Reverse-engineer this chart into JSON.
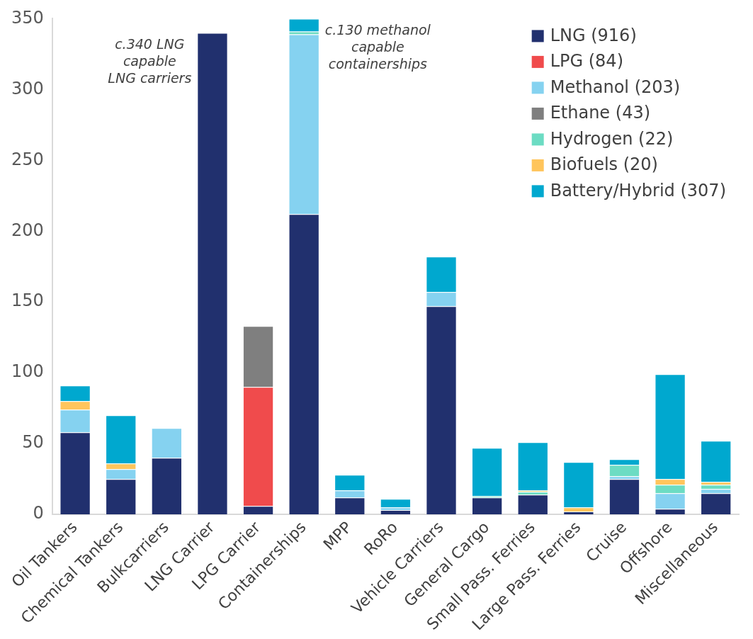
{
  "chart_data": {
    "type": "bar",
    "stacked": true,
    "categories": [
      "Oil Tankers",
      "Chemical Tankers",
      "Bulkcarriers",
      "LNG Carrier",
      "LPG Carrier",
      "Containerships",
      "MPP",
      "RoRo",
      "Vehicle Carriers",
      "General Cargo",
      "Small Pass. Ferries",
      "Large Pass. Ferries",
      "Cruise",
      "Offshore",
      "Miscellaneous"
    ],
    "series": [
      {
        "name": "LNG (916)",
        "color": "#21306e",
        "values": [
          58,
          25,
          40,
          340,
          6,
          212,
          12,
          3,
          147,
          12,
          14,
          2,
          25,
          4,
          15
        ]
      },
      {
        "name": "LPG (84)",
        "color": "#f04b4c",
        "values": [
          null,
          null,
          null,
          null,
          84,
          null,
          null,
          null,
          null,
          null,
          null,
          null,
          null,
          null,
          null
        ]
      },
      {
        "name": "Methanol (203)",
        "color": "#85d2f0",
        "values": [
          16,
          7,
          21,
          null,
          null,
          127,
          5,
          2,
          10,
          null,
          null,
          null,
          2,
          11,
          3
        ]
      },
      {
        "name": "Ethane (43)",
        "color": "#7f7f7f",
        "values": [
          null,
          null,
          null,
          null,
          43,
          null,
          null,
          null,
          null,
          null,
          null,
          null,
          null,
          null,
          null
        ]
      },
      {
        "name": "Hydrogen (22)",
        "color": "#6cdcc3",
        "values": [
          null,
          null,
          null,
          null,
          null,
          2,
          null,
          null,
          null,
          1,
          2,
          null,
          8,
          6,
          3
        ]
      },
      {
        "name": "Biofuels (20)",
        "color": "#ffc55c",
        "values": [
          6,
          4,
          null,
          null,
          null,
          null,
          null,
          null,
          null,
          null,
          1,
          3,
          null,
          4,
          2
        ]
      },
      {
        "name": "Battery/Hybrid (307)",
        "color": "#00a8cf",
        "values": [
          11,
          34,
          null,
          null,
          null,
          9,
          11,
          6,
          25,
          34,
          34,
          32,
          4,
          74,
          29
        ]
      }
    ],
    "ylim": [
      0,
      350
    ],
    "yticks": [
      0,
      50,
      100,
      150,
      200,
      250,
      300,
      350
    ],
    "grid": false,
    "legend": "top right",
    "annotations": [
      {
        "text": "c.340 LNG\ncapable\nLNG carriers",
        "x": "LNG Carrier",
        "y": 340
      },
      {
        "text": "c.130 methanol\ncapable\ncontainerships",
        "x": "Containerships",
        "y": 350
      }
    ]
  }
}
